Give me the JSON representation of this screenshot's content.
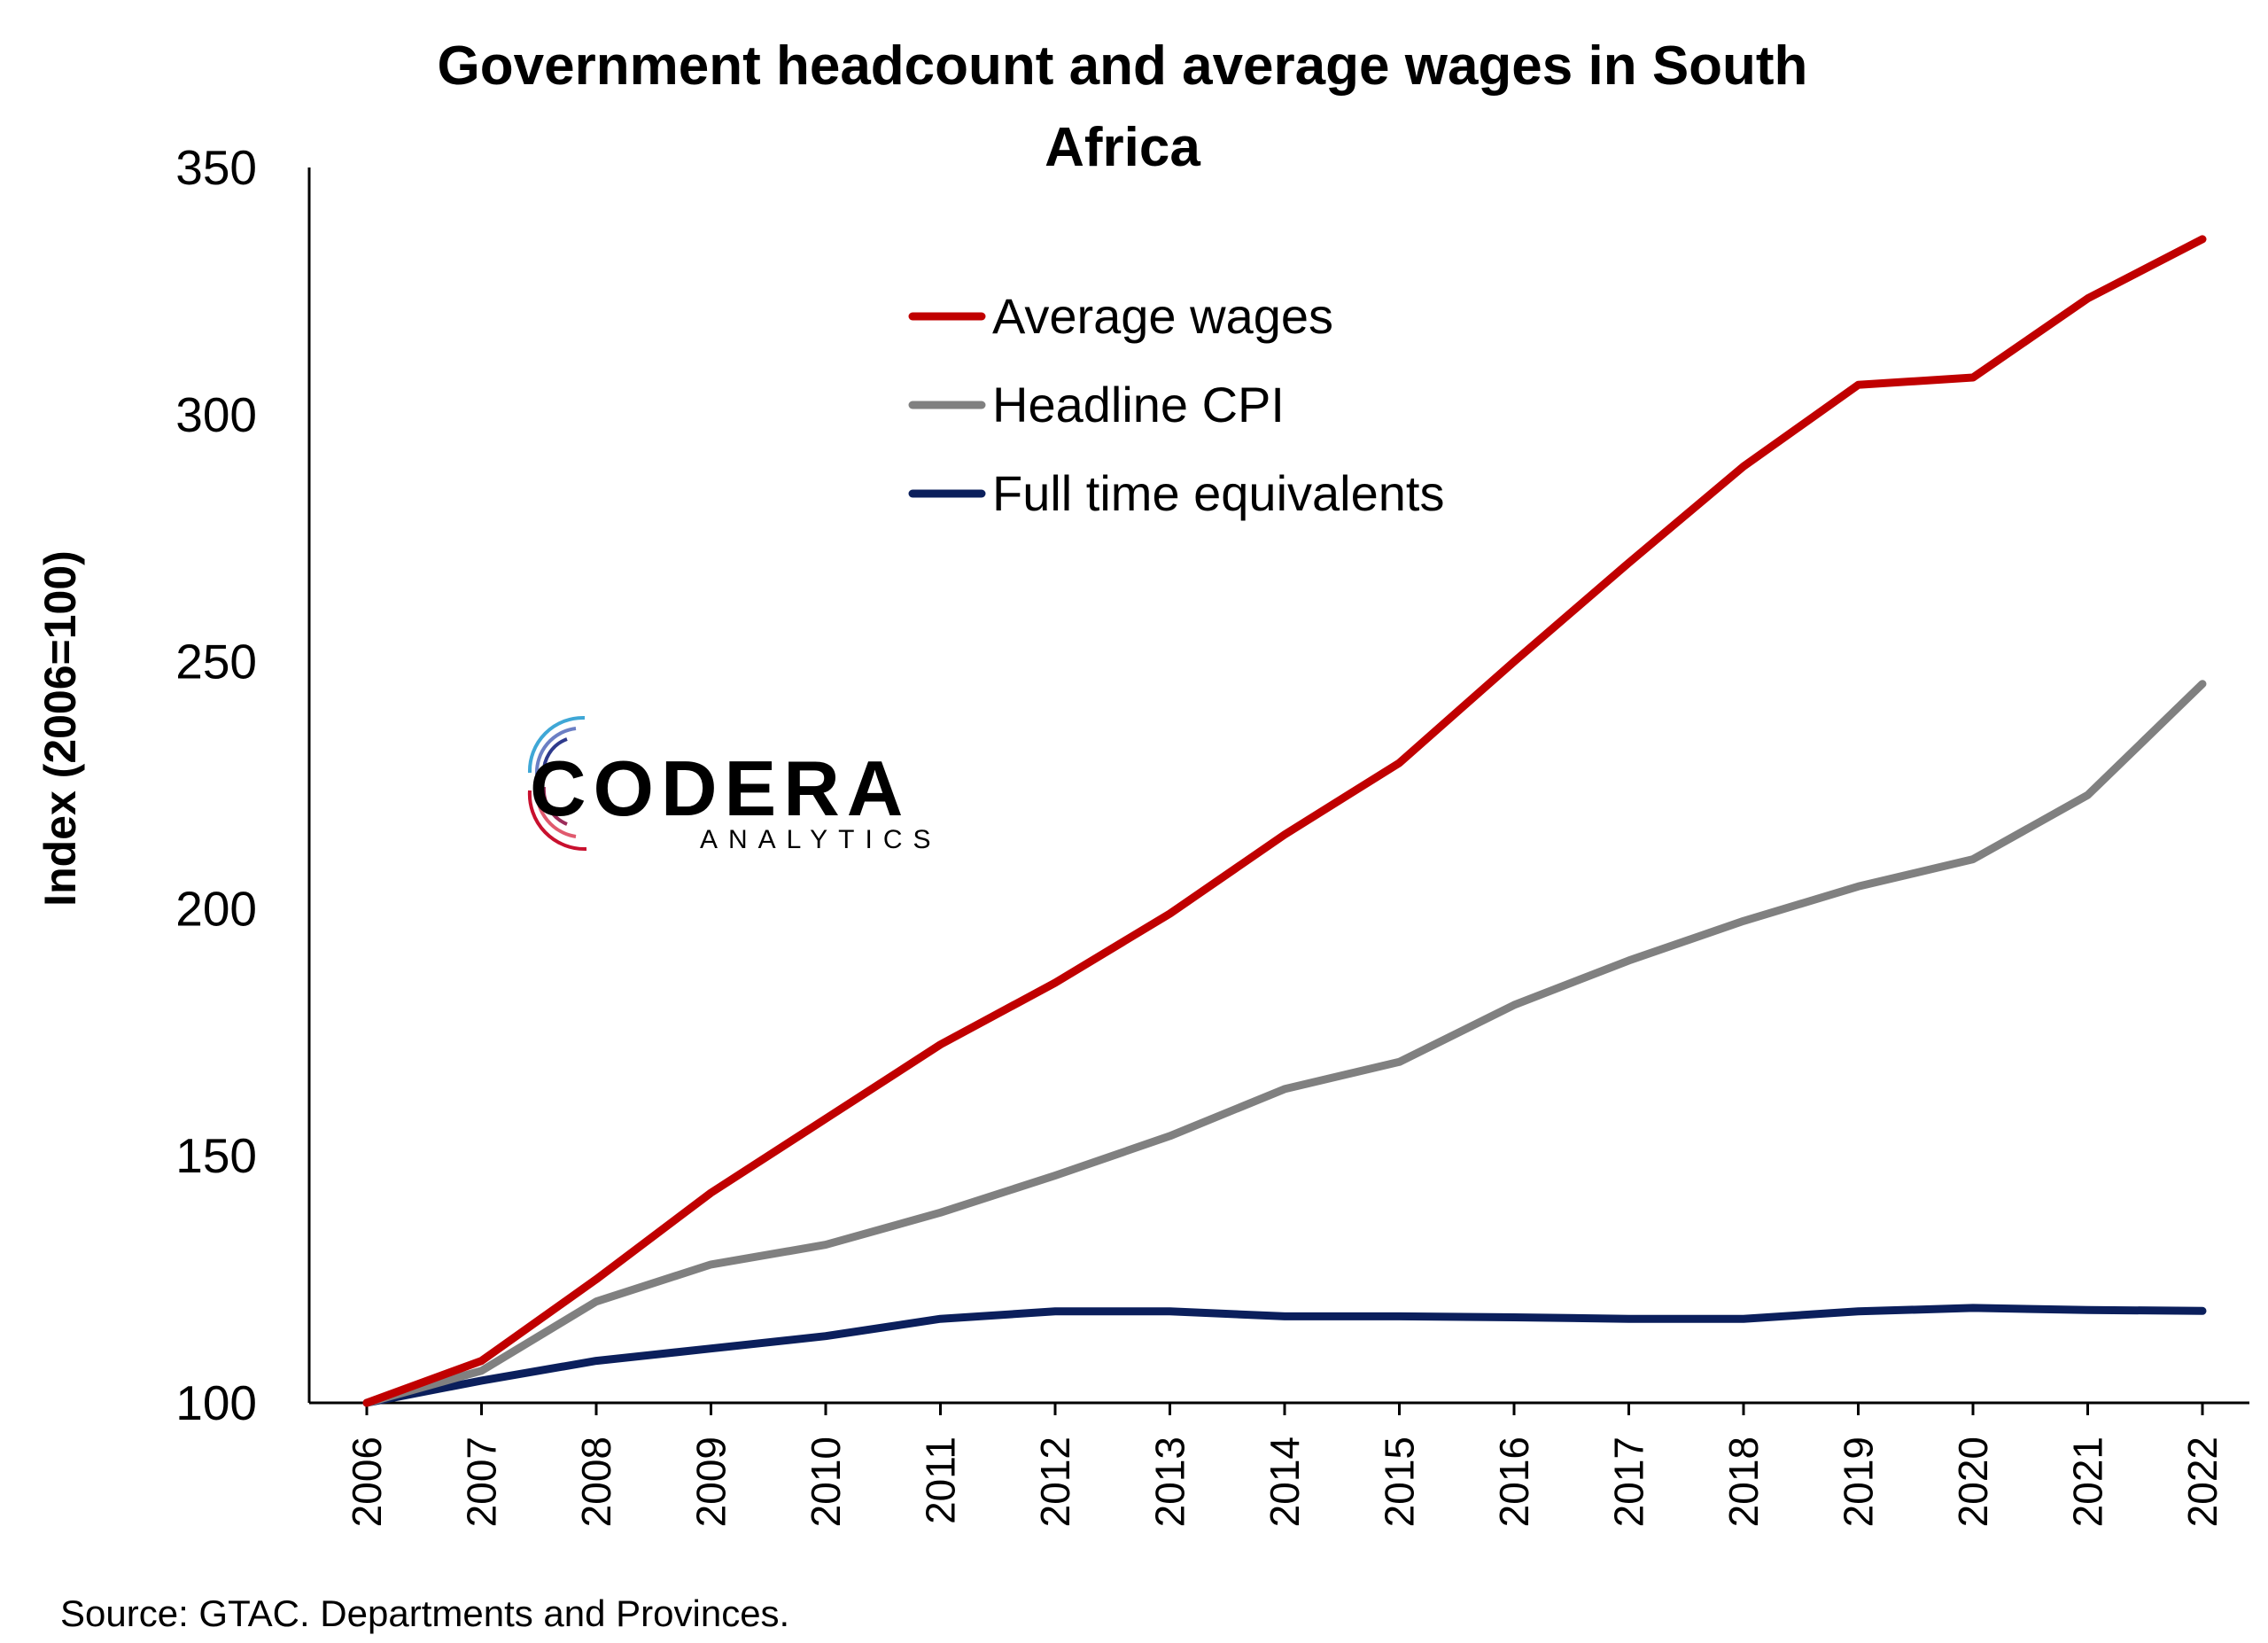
{
  "chart_data": {
    "type": "line",
    "title_lines": [
      "Government headcount and average wages in South",
      "Africa"
    ],
    "title": "Government headcount and average wages in South Africa",
    "xlabel": "",
    "ylabel": "Index (2006=100)",
    "ylim": [
      100,
      350
    ],
    "yticks": [
      "100",
      "150",
      "200",
      "250",
      "300",
      "350"
    ],
    "categories": [
      "2006",
      "2007",
      "2008",
      "2009",
      "2010",
      "2011",
      "2012",
      "2013",
      "2014",
      "2015",
      "2016",
      "2017",
      "2018",
      "2019",
      "2020",
      "2021",
      "2022"
    ],
    "series": [
      {
        "name": "Average wages",
        "color": "#C00000",
        "values": [
          100,
          108.5,
          125,
          142.5,
          157.5,
          172.5,
          185,
          199,
          215,
          229.5,
          250,
          270,
          289.5,
          306,
          307.5,
          323.5,
          335.5
        ]
      },
      {
        "name": "Headline CPI",
        "color": "#808080",
        "values": [
          100,
          106.5,
          120.5,
          128,
          132,
          138.5,
          146,
          154,
          163.5,
          169,
          180.5,
          189.5,
          197.5,
          204.5,
          210,
          223,
          245.5
        ]
      },
      {
        "name": "Full time equivalents",
        "color": "#0B1F5C",
        "values": [
          100,
          104.5,
          108.5,
          111,
          113.5,
          117,
          118.5,
          118.5,
          117.5,
          117.5,
          117.3,
          117,
          117,
          118.5,
          119.2,
          118.8,
          118.6
        ]
      }
    ],
    "legend_position": "top-center",
    "grid": false
  },
  "source_text": "Source: GTAC. Departments and Provinces.",
  "logo": {
    "name": "CODERA",
    "tagline": "ANALYTICS",
    "colors": [
      "#C8102E",
      "#2E3A8C",
      "#3FA7D6"
    ]
  }
}
